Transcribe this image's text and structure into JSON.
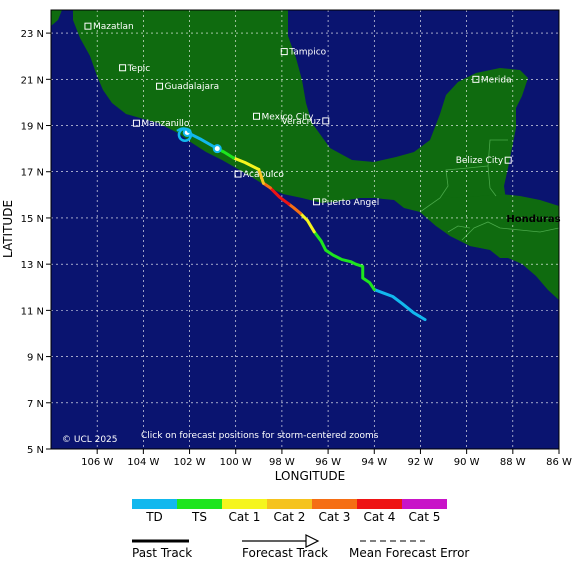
{
  "map": {
    "lon_range": [
      -108,
      -86
    ],
    "lat_range": [
      5,
      24
    ],
    "colors": {
      "ocean": "#0a1470",
      "land": "#0f6b0f",
      "border": "#4aa84a",
      "grid": "#ffffff"
    },
    "lon_ticks": [
      {
        "lon": -106,
        "label": "106 W"
      },
      {
        "lon": -104,
        "label": "104 W"
      },
      {
        "lon": -102,
        "label": "102 W"
      },
      {
        "lon": -100,
        "label": "100 W"
      },
      {
        "lon": -98,
        "label": "98 W"
      },
      {
        "lon": -96,
        "label": "96 W"
      },
      {
        "lon": -94,
        "label": "94 W"
      },
      {
        "lon": -92,
        "label": "92 W"
      },
      {
        "lon": -90,
        "label": "90 W"
      },
      {
        "lon": -88,
        "label": "88 W"
      },
      {
        "lon": -86,
        "label": "86 W"
      }
    ],
    "lat_ticks": [
      {
        "lat": 23,
        "label": "23 N"
      },
      {
        "lat": 21,
        "label": "21 N"
      },
      {
        "lat": 19,
        "label": "19 N"
      },
      {
        "lat": 17,
        "label": "17 N"
      },
      {
        "lat": 15,
        "label": "15 N"
      },
      {
        "lat": 13,
        "label": "13 N"
      },
      {
        "lat": 11,
        "label": "11 N"
      },
      {
        "lat": 9,
        "label": "9 N"
      },
      {
        "lat": 7,
        "label": "7 N"
      },
      {
        "lat": 5,
        "label": "5 N"
      }
    ],
    "xlabel": "LONGITUDE",
    "ylabel": "LATITUDE",
    "cities": [
      {
        "name": "Mazatlan",
        "lon": -106.4,
        "lat": 23.3
      },
      {
        "name": "Tepic",
        "lon": -104.9,
        "lat": 21.5
      },
      {
        "name": "Guadalajara",
        "lon": -103.3,
        "lat": 20.7
      },
      {
        "name": "Manzanillo",
        "lon": -104.3,
        "lat": 19.1
      },
      {
        "name": "Tampico",
        "lon": -97.9,
        "lat": 22.2
      },
      {
        "name": "Mexico City",
        "lon": -99.1,
        "lat": 19.4
      },
      {
        "name": "Veracruz",
        "lon": -96.1,
        "lat": 19.2,
        "label_left": true
      },
      {
        "name": "Acapulco",
        "lon": -99.9,
        "lat": 16.9
      },
      {
        "name": "Puerto Angel",
        "lon": -96.5,
        "lat": 15.7
      },
      {
        "name": "Merida",
        "lon": -89.6,
        "lat": 21.0
      },
      {
        "name": "Belize City",
        "lon": -88.2,
        "lat": 17.5,
        "label_left": true
      }
    ],
    "country_label": {
      "name": "Honduras",
      "lon": -87.5,
      "lat": 15.0,
      "color": "#44dd44"
    },
    "copyright": "© UCL 2025",
    "click_note": "Click on forecast positions for storm-centered zooms"
  },
  "track": {
    "segments": [
      {
        "points": [
          [
            -91.8,
            10.6
          ],
          [
            -92.3,
            10.9
          ],
          [
            -92.8,
            11.3
          ],
          [
            -93.2,
            11.6
          ],
          [
            -93.6,
            11.75
          ],
          [
            -94.0,
            11.9
          ]
        ],
        "cat": "td"
      },
      {
        "points": [
          [
            -94.0,
            11.9
          ],
          [
            -94.2,
            12.2
          ],
          [
            -94.5,
            12.4
          ],
          [
            -94.5,
            12.9
          ],
          [
            -94.8,
            13.0
          ],
          [
            -95.0,
            13.1
          ],
          [
            -95.4,
            13.2
          ],
          [
            -95.8,
            13.4
          ],
          [
            -96.1,
            13.6
          ],
          [
            -96.3,
            14.0
          ],
          [
            -96.6,
            14.4
          ]
        ],
        "cat": "ts"
      },
      {
        "points": [
          [
            -96.6,
            14.4
          ],
          [
            -96.9,
            14.9
          ],
          [
            -97.2,
            15.2
          ]
        ],
        "cat": "cat1"
      },
      {
        "points": [
          [
            -97.2,
            15.2
          ],
          [
            -97.5,
            15.45
          ],
          [
            -97.7,
            15.6
          ]
        ],
        "cat": "cat3"
      },
      {
        "points": [
          [
            -97.7,
            15.6
          ],
          [
            -98.1,
            15.9
          ],
          [
            -98.5,
            16.3
          ]
        ],
        "cat": "cat4"
      },
      {
        "points": [
          [
            -98.5,
            16.3
          ],
          [
            -98.8,
            16.5
          ]
        ],
        "cat": "cat3"
      },
      {
        "points": [
          [
            -98.8,
            16.5
          ],
          [
            -98.9,
            16.8
          ],
          [
            -99.0,
            17.1
          ]
        ],
        "cat": "cat2"
      },
      {
        "points": [
          [
            -99.0,
            17.1
          ],
          [
            -99.6,
            17.4
          ],
          [
            -100.1,
            17.6
          ]
        ],
        "cat": "cat1"
      },
      {
        "points": [
          [
            -100.1,
            17.6
          ],
          [
            -100.5,
            17.85
          ],
          [
            -100.8,
            18.0
          ]
        ],
        "cat": "ts"
      },
      {
        "points": [
          [
            -100.8,
            18.0
          ],
          [
            -101.5,
            18.4
          ],
          [
            -102.1,
            18.7
          ]
        ],
        "cat": "td"
      }
    ],
    "forecast_points": [
      {
        "lon": -100.8,
        "lat": 18.0,
        "cat": "td"
      },
      {
        "lon": -102.1,
        "lat": 18.7,
        "cat": "td"
      }
    ],
    "end_symbol": {
      "lon": -102.2,
      "lat": 18.6
    }
  },
  "legend": {
    "categories": [
      {
        "key": "td",
        "label": "TD",
        "color": "#12b8ee"
      },
      {
        "key": "ts",
        "label": "TS",
        "color": "#1ee51e"
      },
      {
        "key": "cat1",
        "label": "Cat 1",
        "color": "#f5f51e"
      },
      {
        "key": "cat2",
        "label": "Cat 2",
        "color": "#f5c31e"
      },
      {
        "key": "cat3",
        "label": "Cat 3",
        "color": "#f56e14"
      },
      {
        "key": "cat4",
        "label": "Cat 4",
        "color": "#ee1414"
      },
      {
        "key": "cat5",
        "label": "Cat 5",
        "color": "#c814c8"
      }
    ],
    "past_track": "Past Track",
    "forecast_track": "Forecast Track",
    "mean_error": "Mean Forecast Error"
  }
}
